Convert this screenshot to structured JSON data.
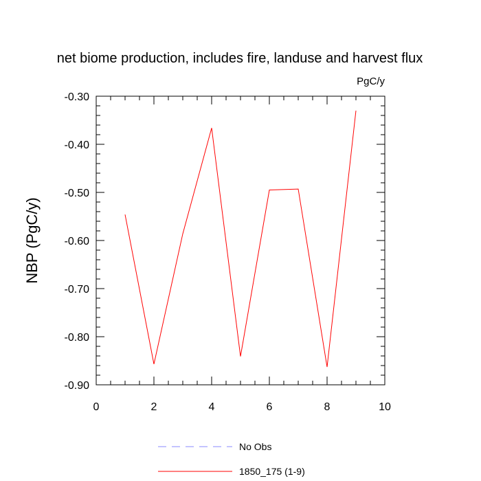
{
  "chart_data": {
    "type": "line",
    "title": "net biome production, includes fire, landuse and harvest flux",
    "units": "PgC/y",
    "xlabel": "",
    "ylabel": "NBP  (PgC/y)",
    "xlim": [
      0,
      10
    ],
    "ylim": [
      -0.9,
      -0.3
    ],
    "x_ticks": [
      "0",
      "2",
      "4",
      "6",
      "8",
      "10"
    ],
    "y_ticks": [
      "-0.30",
      "-0.40",
      "-0.50",
      "-0.60",
      "-0.70",
      "-0.80",
      "-0.90"
    ],
    "grid": false,
    "legend_position": "bottom",
    "series": [
      {
        "name": "1850_175 (1-9)",
        "color": "#ff0000",
        "style": "solid",
        "x": [
          1,
          2,
          3,
          4,
          5,
          6,
          7,
          8,
          9
        ],
        "y": [
          -0.546,
          -0.857,
          -0.586,
          -0.366,
          -0.841,
          -0.495,
          -0.493,
          -0.863,
          -0.33
        ]
      }
    ],
    "legend": [
      {
        "label": "No Obs",
        "color": "#8a8aff",
        "style": "dashed"
      },
      {
        "label": "1850_175 (1-9)",
        "color": "#ff0000",
        "style": "solid"
      }
    ]
  }
}
